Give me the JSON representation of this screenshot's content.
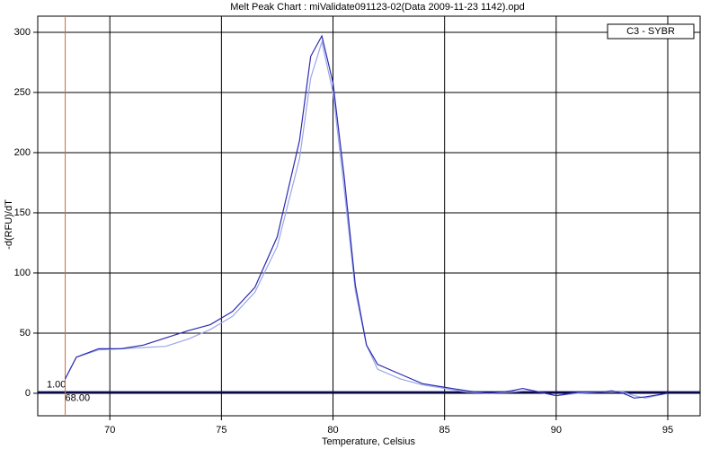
{
  "chart_data": {
    "type": "line",
    "title": "Melt Peak Chart : miValidate091123-02(Data 2009-11-23 1142).opd",
    "x_label": "Temperature, Celsius",
    "y_label": "-d(RFU)/dT",
    "x": [
      68,
      68.5,
      69.5,
      70.5,
      71.5,
      72.5,
      73.5,
      74.5,
      75.5,
      76.5,
      77.5,
      78.5,
      79,
      79.5,
      80,
      80.5,
      81,
      81.5,
      82,
      83,
      84,
      85,
      86,
      87,
      88,
      88.5,
      89,
      90,
      91,
      92,
      92.5,
      93,
      93.5,
      94,
      95
    ],
    "series": [
      {
        "name": "C3 - SYBR",
        "color": "#2b2bb0",
        "values": [
          12,
          30,
          37,
          37,
          40,
          46,
          52,
          57,
          68,
          88,
          130,
          210,
          280,
          297,
          258,
          180,
          90,
          40,
          24,
          16,
          8,
          5,
          2,
          0,
          2,
          4,
          2,
          -2,
          1,
          1,
          2,
          0,
          -4,
          -3,
          0
        ]
      },
      {
        "color": "#9aa6e8",
        "values": [
          12,
          30,
          36,
          37,
          38,
          39,
          45,
          53,
          64,
          84,
          122,
          195,
          262,
          292,
          250,
          170,
          85,
          40,
          20,
          12,
          7,
          4,
          1,
          0,
          1,
          2,
          2,
          -2,
          0,
          1,
          1,
          1,
          -2,
          -4,
          0
        ]
      }
    ],
    "xlim": [
      66.77,
      96.45
    ],
    "ylim": [
      -18.7,
      313.4
    ],
    "xticks": [
      70,
      75,
      80,
      85,
      90,
      95
    ],
    "yticks": [
      0,
      50,
      100,
      150,
      200,
      250,
      300
    ],
    "grid": true,
    "threshold": {
      "value": 1,
      "label": "1.00",
      "color": "#0a0a60"
    },
    "marker": {
      "value": 68,
      "label": "68.00",
      "color": "#d2693c"
    },
    "legend": "top-right"
  }
}
